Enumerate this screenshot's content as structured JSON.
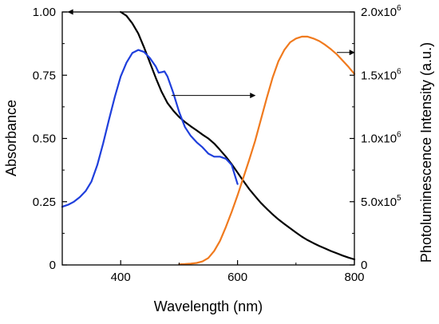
{
  "chart_data": {
    "type": "line",
    "title": "",
    "xlabel": "Wavelength (nm)",
    "ylabel_left": "Absorbance",
    "ylabel_right": "Photoluminescence Intensity (a.u.)",
    "xlim": [
      300,
      800
    ],
    "ylim_left": [
      0,
      1.0
    ],
    "ylim_right": [
      0,
      2000000
    ],
    "grid": false,
    "legend": "none",
    "x_ticks": [
      {
        "value": 400,
        "label": "400"
      },
      {
        "value": 600,
        "label": "600"
      },
      {
        "value": 800,
        "label": "800"
      }
    ],
    "y_left_ticks": [
      {
        "value": 0,
        "label": "0"
      },
      {
        "value": 0.25,
        "label": "0.25"
      },
      {
        "value": 0.5,
        "label": "0.50"
      },
      {
        "value": 0.75,
        "label": "0.75"
      },
      {
        "value": 1.0,
        "label": "1.00"
      }
    ],
    "y_right_ticks": [
      {
        "value": 0,
        "mantissa": "0",
        "exponent": ""
      },
      {
        "value": 500000,
        "mantissa": "5.0x10",
        "exponent": "5"
      },
      {
        "value": 1000000,
        "mantissa": "1.0x10",
        "exponent": "6"
      },
      {
        "value": 1500000,
        "mantissa": "1.5x10",
        "exponent": "6"
      },
      {
        "value": 2000000,
        "mantissa": "2.0x10",
        "exponent": "6"
      }
    ],
    "series": [
      {
        "color": "#000000",
        "axis": "left",
        "points": [
          [
            400,
            1.0
          ],
          [
            410,
            0.985
          ],
          [
            420,
            0.955
          ],
          [
            430,
            0.915
          ],
          [
            440,
            0.86
          ],
          [
            450,
            0.8
          ],
          [
            460,
            0.74
          ],
          [
            470,
            0.685
          ],
          [
            480,
            0.64
          ],
          [
            490,
            0.61
          ],
          [
            500,
            0.585
          ],
          [
            510,
            0.565
          ],
          [
            520,
            0.548
          ],
          [
            530,
            0.532
          ],
          [
            540,
            0.515
          ],
          [
            550,
            0.5
          ],
          [
            560,
            0.48
          ],
          [
            570,
            0.455
          ],
          [
            580,
            0.428
          ],
          [
            590,
            0.398
          ],
          [
            600,
            0.365
          ],
          [
            610,
            0.332
          ],
          [
            620,
            0.3
          ],
          [
            630,
            0.272
          ],
          [
            640,
            0.245
          ],
          [
            650,
            0.222
          ],
          [
            660,
            0.2
          ],
          [
            670,
            0.18
          ],
          [
            680,
            0.162
          ],
          [
            690,
            0.145
          ],
          [
            700,
            0.128
          ],
          [
            710,
            0.112
          ],
          [
            720,
            0.098
          ],
          [
            730,
            0.086
          ],
          [
            740,
            0.075
          ],
          [
            750,
            0.065
          ],
          [
            760,
            0.055
          ],
          [
            770,
            0.046
          ],
          [
            780,
            0.037
          ],
          [
            790,
            0.029
          ],
          [
            800,
            0.022
          ]
        ]
      },
      {
        "color": "#1f3fdc",
        "axis": "left",
        "points": [
          [
            300,
            0.23
          ],
          [
            310,
            0.238
          ],
          [
            320,
            0.25
          ],
          [
            330,
            0.268
          ],
          [
            340,
            0.292
          ],
          [
            350,
            0.33
          ],
          [
            360,
            0.395
          ],
          [
            370,
            0.48
          ],
          [
            380,
            0.575
          ],
          [
            390,
            0.665
          ],
          [
            400,
            0.745
          ],
          [
            410,
            0.8
          ],
          [
            420,
            0.838
          ],
          [
            430,
            0.85
          ],
          [
            440,
            0.842
          ],
          [
            450,
            0.818
          ],
          [
            460,
            0.785
          ],
          [
            465,
            0.76
          ],
          [
            470,
            0.762
          ],
          [
            475,
            0.765
          ],
          [
            480,
            0.745
          ],
          [
            490,
            0.68
          ],
          [
            500,
            0.605
          ],
          [
            510,
            0.545
          ],
          [
            520,
            0.51
          ],
          [
            530,
            0.485
          ],
          [
            540,
            0.465
          ],
          [
            550,
            0.44
          ],
          [
            560,
            0.428
          ],
          [
            570,
            0.428
          ],
          [
            580,
            0.42
          ],
          [
            590,
            0.395
          ],
          [
            600,
            0.32
          ]
        ]
      },
      {
        "color": "#f07a1e",
        "axis": "right",
        "points": [
          [
            500,
            5000
          ],
          [
            510,
            7000
          ],
          [
            520,
            10000
          ],
          [
            530,
            16000
          ],
          [
            540,
            28000
          ],
          [
            550,
            55000
          ],
          [
            560,
            110000
          ],
          [
            570,
            190000
          ],
          [
            580,
            300000
          ],
          [
            590,
            420000
          ],
          [
            600,
            550000
          ],
          [
            610,
            690000
          ],
          [
            620,
            830000
          ],
          [
            630,
            980000
          ],
          [
            640,
            1150000
          ],
          [
            650,
            1320000
          ],
          [
            660,
            1480000
          ],
          [
            670,
            1610000
          ],
          [
            680,
            1700000
          ],
          [
            690,
            1760000
          ],
          [
            700,
            1790000
          ],
          [
            710,
            1805000
          ],
          [
            720,
            1805000
          ],
          [
            730,
            1790000
          ],
          [
            740,
            1770000
          ],
          [
            750,
            1740000
          ],
          [
            760,
            1705000
          ],
          [
            770,
            1665000
          ],
          [
            780,
            1615000
          ],
          [
            790,
            1565000
          ],
          [
            800,
            1510000
          ]
        ]
      }
    ],
    "annotations": [
      {
        "type": "arrow",
        "direction": "left",
        "from": [
          462,
          1.0
        ],
        "to": [
          310,
          1.0
        ]
      },
      {
        "type": "arrow",
        "direction": "right",
        "from": [
          487,
          0.67
        ],
        "to": [
          630,
          0.67
        ]
      },
      {
        "type": "arrow",
        "direction": "right",
        "from": [
          770,
          0.84
        ],
        "to": [
          800,
          0.84
        ]
      }
    ]
  }
}
